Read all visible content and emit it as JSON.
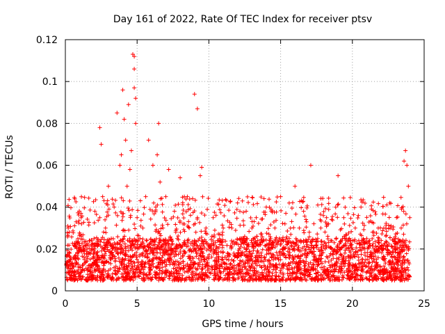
{
  "chart_data": {
    "type": "scatter",
    "title": "Day 161 of 2022, Rate Of TEC Index for receiver ptsv",
    "xlabel": "GPS time / hours",
    "ylabel": "ROTI / TECUs",
    "xlim": [
      0,
      25
    ],
    "ylim": [
      0,
      0.12
    ],
    "x_ticks": [
      "0",
      "5",
      "10",
      "15",
      "20",
      "25"
    ],
    "y_ticks": [
      "0",
      "0.02",
      "0.04",
      "0.06",
      "0.08",
      "0.1",
      "0.12"
    ],
    "grid": true,
    "marker": "plus",
    "color": "#ff0000",
    "series": [
      {
        "name": "ROTI",
        "x": [
          0.1,
          0.2,
          0.3,
          0.5,
          0.7,
          0.9,
          1.1,
          1.3,
          1.5,
          1.8,
          2.0,
          2.2,
          2.4,
          2.4,
          2.5,
          2.6,
          2.7,
          2.8,
          3.0,
          3.2,
          3.4,
          3.6,
          3.8,
          3.9,
          4.0,
          4.1,
          4.2,
          4.3,
          4.4,
          4.5,
          4.6,
          4.7,
          4.8,
          4.8,
          4.8,
          4.9,
          4.9,
          5.0,
          5.2,
          5.4,
          5.6,
          5.8,
          5.9,
          6.1,
          6.3,
          6.4,
          6.5,
          6.6,
          6.8,
          7.0,
          7.2,
          7.4,
          7.6,
          7.8,
          8.0,
          8.2,
          8.5,
          8.7,
          9.0,
          9.2,
          9.2,
          9.4,
          9.5,
          9.8,
          10.0,
          10.3,
          10.6,
          11.0,
          11.3,
          11.6,
          12.0,
          12.3,
          12.6,
          13.0,
          13.3,
          13.6,
          14.0,
          14.3,
          14.6,
          15.0,
          15.3,
          15.6,
          16.0,
          16.3,
          16.6,
          17.0,
          17.1,
          17.5,
          17.8,
          18.2,
          18.6,
          19.0,
          19.4,
          19.8,
          20.2,
          20.6,
          21.0,
          21.4,
          21.8,
          22.2,
          22.6,
          23.0,
          23.4,
          23.6,
          23.7,
          23.8,
          23.9,
          24.0
        ],
        "y": [
          0.014,
          0.03,
          0.018,
          0.012,
          0.022,
          0.01,
          0.035,
          0.016,
          0.02,
          0.012,
          0.025,
          0.015,
          0.078,
          0.035,
          0.07,
          0.045,
          0.02,
          0.03,
          0.05,
          0.025,
          0.04,
          0.085,
          0.06,
          0.065,
          0.096,
          0.082,
          0.072,
          0.05,
          0.089,
          0.058,
          0.067,
          0.113,
          0.112,
          0.106,
          0.097,
          0.092,
          0.08,
          0.035,
          0.025,
          0.03,
          0.045,
          0.072,
          0.018,
          0.06,
          0.04,
          0.065,
          0.08,
          0.052,
          0.03,
          0.045,
          0.058,
          0.022,
          0.038,
          0.025,
          0.054,
          0.032,
          0.045,
          0.02,
          0.094,
          0.087,
          0.035,
          0.055,
          0.059,
          0.03,
          0.02,
          0.035,
          0.024,
          0.03,
          0.018,
          0.03,
          0.042,
          0.025,
          0.038,
          0.03,
          0.035,
          0.022,
          0.04,
          0.025,
          0.03,
          0.045,
          0.032,
          0.025,
          0.05,
          0.03,
          0.038,
          0.028,
          0.06,
          0.022,
          0.03,
          0.035,
          0.02,
          0.055,
          0.035,
          0.025,
          0.03,
          0.04,
          0.025,
          0.028,
          0.03,
          0.022,
          0.042,
          0.025,
          0.03,
          0.062,
          0.067,
          0.06,
          0.05,
          0.035
        ]
      }
    ],
    "baseline_band": [
      0.005,
      0.025
    ]
  }
}
